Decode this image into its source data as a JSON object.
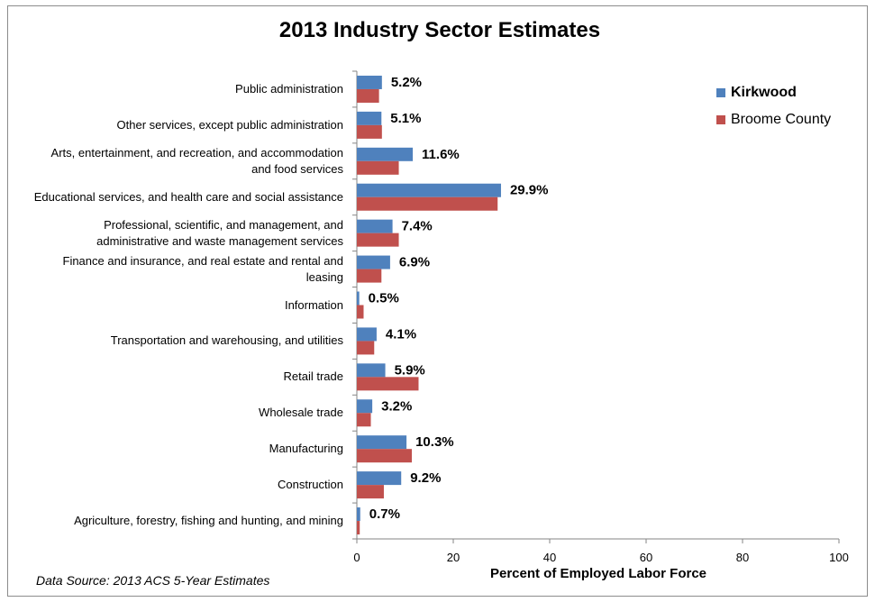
{
  "chart_data": {
    "type": "bar",
    "orientation": "horizontal",
    "title": "2013 Industry Sector Estimates",
    "xlabel": "Percent of Employed Labor Force",
    "xlim": [
      0,
      100
    ],
    "xticks": [
      0,
      20,
      40,
      60,
      80,
      100
    ],
    "grid": false,
    "legend_position": "top-right",
    "categories": [
      [
        "Public administration"
      ],
      [
        "Other services, except public administration"
      ],
      [
        "Arts, entertainment, and recreation, and accommodation",
        "and food services"
      ],
      [
        "Educational services, and health care and social assistance"
      ],
      [
        "Professional, scientific, and management, and",
        "administrative and waste management services"
      ],
      [
        "Finance and insurance, and real estate and rental and",
        "leasing"
      ],
      [
        "Information"
      ],
      [
        "Transportation and warehousing, and utilities"
      ],
      [
        "Retail trade"
      ],
      [
        "Wholesale trade"
      ],
      [
        "Manufacturing"
      ],
      [
        "Construction"
      ],
      [
        "Agriculture, forestry, fishing and hunting, and mining"
      ]
    ],
    "series": [
      {
        "name": "Kirkwood",
        "color": "#4f81bd",
        "values": [
          5.2,
          5.1,
          11.6,
          29.9,
          7.4,
          6.9,
          0.5,
          4.1,
          5.9,
          3.2,
          10.3,
          9.2,
          0.7
        ],
        "data_labels": [
          "5.2%",
          "5.1%",
          "11.6%",
          "29.9%",
          "7.4%",
          "6.9%",
          "0.5%",
          "4.1%",
          "5.9%",
          "3.2%",
          "10.3%",
          "9.2%",
          "0.7%"
        ]
      },
      {
        "name": "Broome County",
        "color": "#c0504d",
        "values": [
          4.6,
          5.2,
          8.7,
          29.2,
          8.7,
          5.1,
          1.4,
          3.6,
          12.8,
          2.9,
          11.4,
          5.6,
          0.6
        ]
      }
    ]
  },
  "footer": {
    "source": "Data Source: 2013 ACS 5-Year Estimates"
  }
}
